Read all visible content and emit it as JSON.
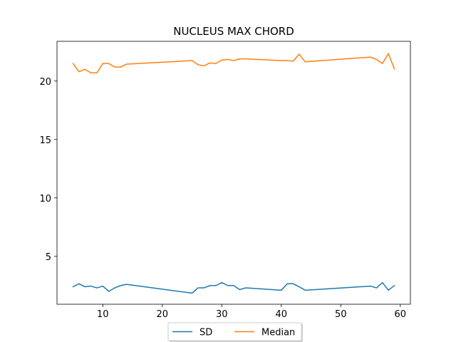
{
  "chart_data": {
    "type": "line",
    "title": "NUCLEUS MAX CHORD",
    "xlabel": "",
    "ylabel": "",
    "xlim": [
      2.3,
      61.7
    ],
    "ylim": [
      0.9,
      23.4
    ],
    "xticks": [
      10,
      20,
      30,
      40,
      50,
      60
    ],
    "yticks": [
      5,
      10,
      15,
      20
    ],
    "grid": false,
    "legend_position": "lower-center-outside",
    "series": [
      {
        "name": "SD",
        "color": "#1f77b4",
        "x": [
          5,
          6,
          7,
          8,
          9,
          10,
          11,
          12,
          13,
          14,
          25,
          26,
          27,
          28,
          29,
          30,
          31,
          32,
          33,
          34,
          40,
          41,
          42,
          43,
          44,
          55,
          56,
          57,
          58,
          59
        ],
        "y": [
          2.4,
          2.65,
          2.4,
          2.45,
          2.3,
          2.45,
          2.0,
          2.3,
          2.5,
          2.6,
          1.85,
          2.3,
          2.3,
          2.5,
          2.5,
          2.75,
          2.5,
          2.5,
          2.15,
          2.3,
          2.1,
          2.65,
          2.65,
          2.4,
          2.1,
          2.45,
          2.3,
          2.75,
          2.1,
          2.5
        ]
      },
      {
        "name": "Median",
        "color": "#ff7f0e",
        "x": [
          5,
          6,
          7,
          8,
          9,
          10,
          11,
          12,
          13,
          14,
          25,
          26,
          27,
          28,
          29,
          30,
          31,
          32,
          33,
          34,
          40,
          41,
          42,
          43,
          44,
          55,
          56,
          57,
          58,
          59
        ],
        "y": [
          21.5,
          20.8,
          21.0,
          20.7,
          20.7,
          21.5,
          21.5,
          21.2,
          21.2,
          21.45,
          21.75,
          21.4,
          21.3,
          21.55,
          21.5,
          21.8,
          21.85,
          21.75,
          21.9,
          21.9,
          21.75,
          21.75,
          21.7,
          22.3,
          21.65,
          22.05,
          21.85,
          21.5,
          22.35,
          21.05
        ]
      }
    ]
  }
}
